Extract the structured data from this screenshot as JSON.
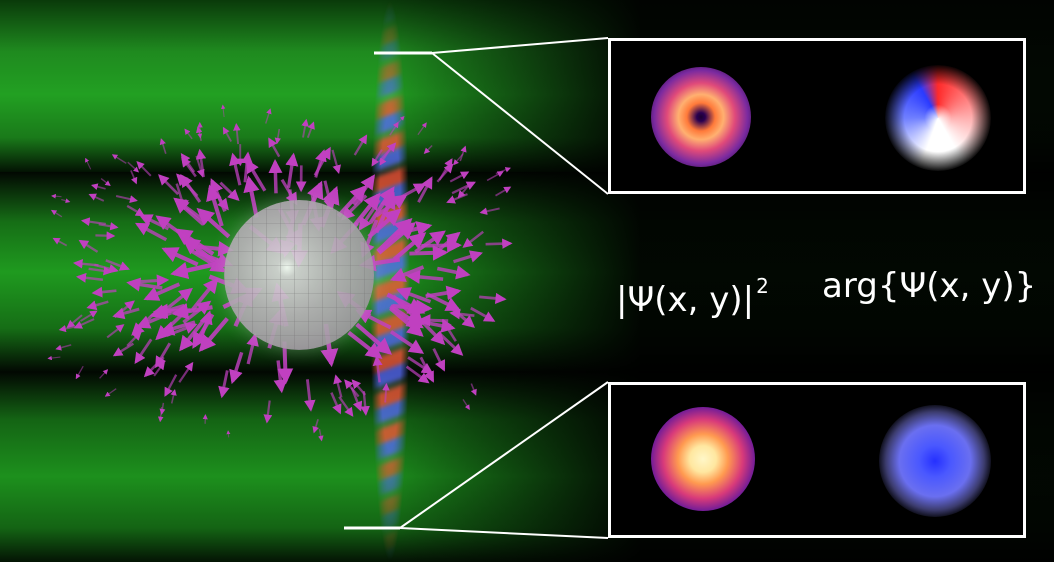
{
  "labels": {
    "intensity": {
      "open_bar": "|",
      "psi": "Ψ",
      "args": "(x, y)",
      "close_bar": "|",
      "power": "2"
    },
    "phase": {
      "func": "arg",
      "open_brace": "{",
      "psi": "Ψ",
      "args": "(x, y)",
      "close_brace": "}"
    }
  },
  "colors": {
    "field_green": "#1f9a1f",
    "vector_magenta": "#c040c0",
    "frame_white": "#ffffff",
    "phase_red": "#ff2a2a",
    "phase_blue": "#2a3aff"
  }
}
